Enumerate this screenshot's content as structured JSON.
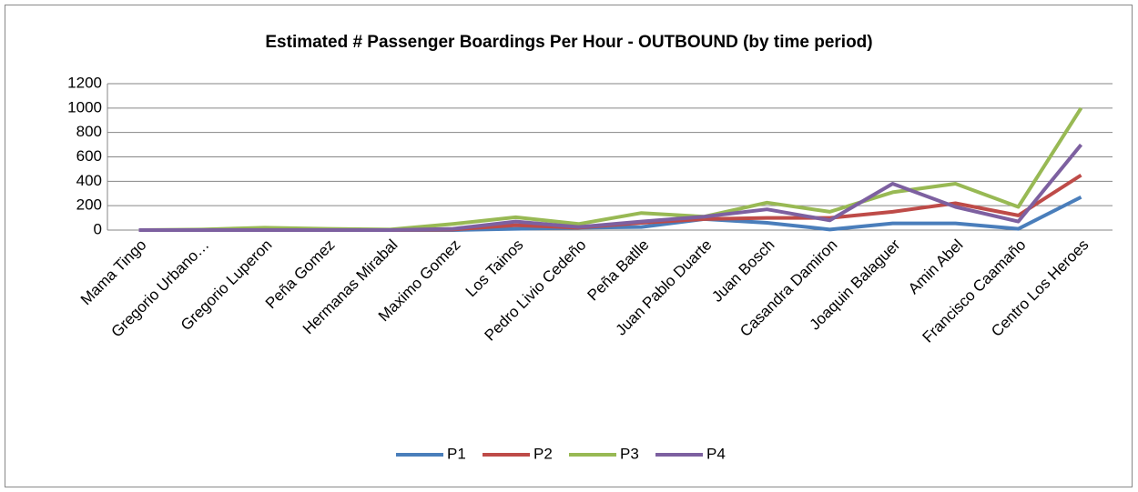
{
  "chart_data": {
    "type": "line",
    "title": "Estimated # Passenger Boardings Per Hour - OUTBOUND (by time period)",
    "categories": [
      "Mama Tingo",
      "Gregorio Urbano…",
      "Gregorio Luperon",
      "Peña Gomez",
      "Hermanas Mirabal",
      "Maximo Gomez",
      "Los Tainos",
      "Pedro Livio Cedeño",
      "Peña Batlle",
      "Juan Pablo Duarte",
      "Juan Bosch",
      "Casandra Damiron",
      "Joaquin Balaguer",
      "Amin Abel",
      "Francisco Caamaño",
      "Centro Los Heroes"
    ],
    "series": [
      {
        "name": "P1",
        "color": "#4a7ebb",
        "values": [
          0,
          0,
          0,
          0,
          0,
          0,
          10,
          20,
          25,
          90,
          60,
          5,
          55,
          55,
          10,
          270
        ]
      },
      {
        "name": "P2",
        "color": "#be4b48",
        "values": [
          0,
          0,
          0,
          0,
          0,
          5,
          40,
          20,
          60,
          90,
          100,
          100,
          150,
          220,
          120,
          450
        ]
      },
      {
        "name": "P3",
        "color": "#98b954",
        "values": [
          0,
          5,
          20,
          10,
          5,
          50,
          105,
          50,
          140,
          110,
          225,
          150,
          310,
          380,
          190,
          1000
        ]
      },
      {
        "name": "P4",
        "color": "#7d60a0",
        "values": [
          0,
          0,
          0,
          0,
          0,
          10,
          70,
          25,
          70,
          110,
          170,
          80,
          380,
          190,
          70,
          700
        ]
      }
    ],
    "ylim": [
      0,
      1200
    ],
    "yticks": [
      0,
      200,
      400,
      600,
      800,
      1000,
      1200
    ],
    "grid": true,
    "legend": "bottom"
  }
}
